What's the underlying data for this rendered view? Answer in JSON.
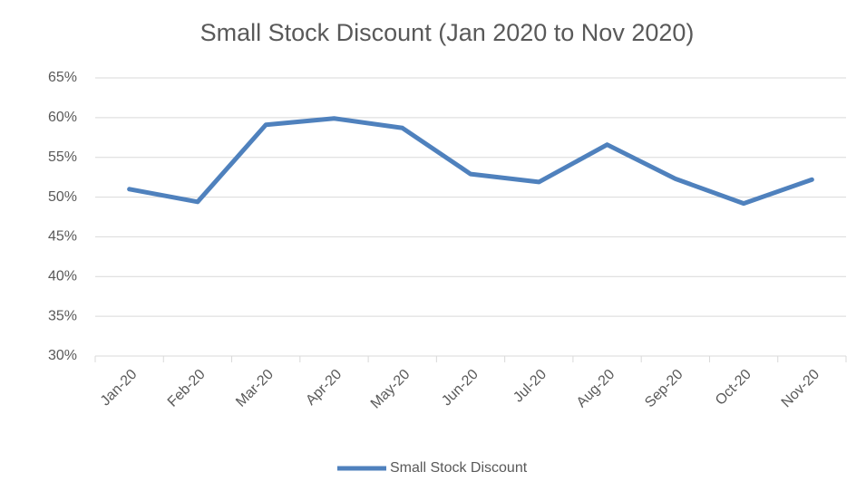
{
  "chart_data": {
    "type": "line",
    "title": "Small Stock Discount (Jan 2020 to Nov 2020)",
    "categories": [
      "Jan-20",
      "Feb-20",
      "Mar-20",
      "Apr-20",
      "May-20",
      "Jun-20",
      "Jul-20",
      "Aug-20",
      "Sep-20",
      "Oct-20",
      "Nov-20"
    ],
    "series": [
      {
        "name": "Small Stock Discount",
        "color": "#4f81bd",
        "values": [
          51,
          49.4,
          59.1,
          59.9,
          58.7,
          52.9,
          51.9,
          56.6,
          52.3,
          49.2,
          52.2
        ]
      }
    ],
    "ylim": [
      30,
      65
    ],
    "yticks": [
      {
        "value": 30,
        "label": "30%"
      },
      {
        "value": 35,
        "label": "35%"
      },
      {
        "value": 40,
        "label": "40%"
      },
      {
        "value": 45,
        "label": "45%"
      },
      {
        "value": 50,
        "label": "50%"
      },
      {
        "value": 55,
        "label": "55%"
      },
      {
        "value": 60,
        "label": "60%"
      },
      {
        "value": 65,
        "label": "65%"
      }
    ],
    "grid": true,
    "legend": "bottom"
  }
}
